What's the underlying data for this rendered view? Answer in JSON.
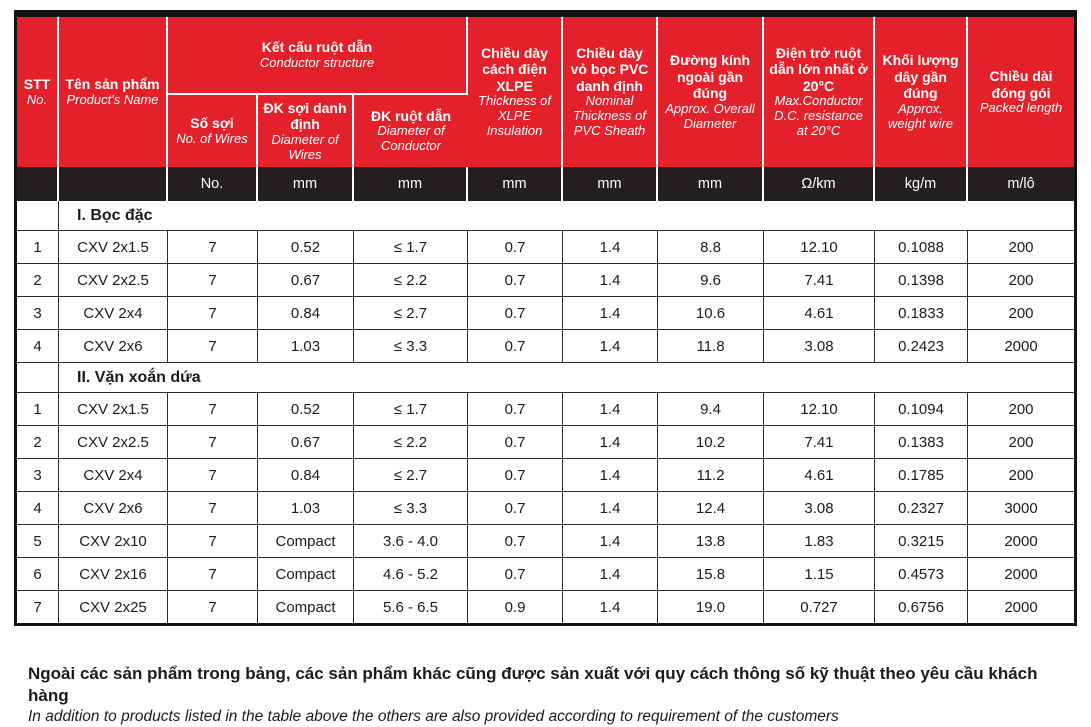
{
  "colors": {
    "header_red": "#e4202b",
    "units_black": "#231f20",
    "grid_line": "#2e2c2b"
  },
  "table": {
    "header": {
      "stt": {
        "vi": "STT",
        "en": "No."
      },
      "product": {
        "vi": "Tên sản phẩm",
        "en": "Product's Name"
      },
      "conductor_group": {
        "vi": "Kết cấu ruột dẫn",
        "en": "Conductor structure"
      },
      "wires": {
        "vi": "Số sợi",
        "en": "No. of Wires"
      },
      "wire_dia": {
        "vi": "ĐK sợi danh định",
        "en": "Diameter of Wires"
      },
      "cond_dia": {
        "vi": "ĐK ruột dẫn",
        "en": "Diameter of Conductor"
      },
      "xlpe": {
        "vi": "Chiều dày cách điện XLPE",
        "en": "Thickness of XLPE Insulation"
      },
      "pvc": {
        "vi": "Chiều dày vỏ bọc PVC danh định",
        "en": "Nominal Thickness of PVC Sheath"
      },
      "overall": {
        "vi": "Đường kính ngoài gần đúng",
        "en": "Approx. Overall Diameter"
      },
      "resistance": {
        "vi": "Điện trở ruột dẫn lớn nhất ở 20°C",
        "en": "Max.Conductor D.C. resistance at 20°C"
      },
      "weight": {
        "vi": "Khối lượng dây gần đúng",
        "en": "Approx. weight wire"
      },
      "length": {
        "vi": "Chiều dài đóng gói",
        "en": "Packed length"
      }
    },
    "units": [
      "",
      "",
      "No.",
      "mm",
      "mm",
      "mm",
      "mm",
      "mm",
      "Ω/km",
      "kg/m",
      "m/lô"
    ],
    "sections": [
      {
        "title": "I. Bọc đặc",
        "rows": [
          [
            "1",
            "CXV 2x1.5",
            "7",
            "0.52",
            "≤ 1.7",
            "0.7",
            "1.4",
            "8.8",
            "12.10",
            "0.1088",
            "200"
          ],
          [
            "2",
            "CXV 2x2.5",
            "7",
            "0.67",
            "≤ 2.2",
            "0.7",
            "1.4",
            "9.6",
            "7.41",
            "0.1398",
            "200"
          ],
          [
            "3",
            "CXV 2x4",
            "7",
            "0.84",
            "≤ 2.7",
            "0.7",
            "1.4",
            "10.6",
            "4.61",
            "0.1833",
            "200"
          ],
          [
            "4",
            "CXV 2x6",
            "7",
            "1.03",
            "≤ 3.3",
            "0.7",
            "1.4",
            "11.8",
            "3.08",
            "0.2423",
            "2000"
          ]
        ]
      },
      {
        "title": "II. Vặn xoắn dứa",
        "rows": [
          [
            "1",
            "CXV 2x1.5",
            "7",
            "0.52",
            "≤ 1.7",
            "0.7",
            "1.4",
            "9.4",
            "12.10",
            "0.1094",
            "200"
          ],
          [
            "2",
            "CXV 2x2.5",
            "7",
            "0.67",
            "≤ 2.2",
            "0.7",
            "1.4",
            "10.2",
            "7.41",
            "0.1383",
            "200"
          ],
          [
            "3",
            "CXV 2x4",
            "7",
            "0.84",
            "≤ 2.7",
            "0.7",
            "1.4",
            "11.2",
            "4.61",
            "0.1785",
            "200"
          ],
          [
            "4",
            "CXV 2x6",
            "7",
            "1.03",
            "≤ 3.3",
            "0.7",
            "1.4",
            "12.4",
            "3.08",
            "0.2327",
            "3000"
          ],
          [
            "5",
            "CXV 2x10",
            "7",
            "Compact",
            "3.6 - 4.0",
            "0.7",
            "1.4",
            "13.8",
            "1.83",
            "0.3215",
            "2000"
          ],
          [
            "6",
            "CXV 2x16",
            "7",
            "Compact",
            "4.6 - 5.2",
            "0.7",
            "1.4",
            "15.8",
            "1.15",
            "0.4573",
            "2000"
          ],
          [
            "7",
            "CXV 2x25",
            "7",
            "Compact",
            "5.6 - 6.5",
            "0.9",
            "1.4",
            "19.0",
            "0.727",
            "0.6756",
            "2000"
          ]
        ]
      }
    ]
  },
  "footer": {
    "line1_vi": "Ngoài các sản phẩm trong bảng, các sản phẩm khác cũng được sản xuất với quy cách thông số kỹ thuật  theo yêu cầu khách hàng",
    "line2_en": "In addition to products listed in the table above the others are also provided according to requirement of the customers"
  }
}
